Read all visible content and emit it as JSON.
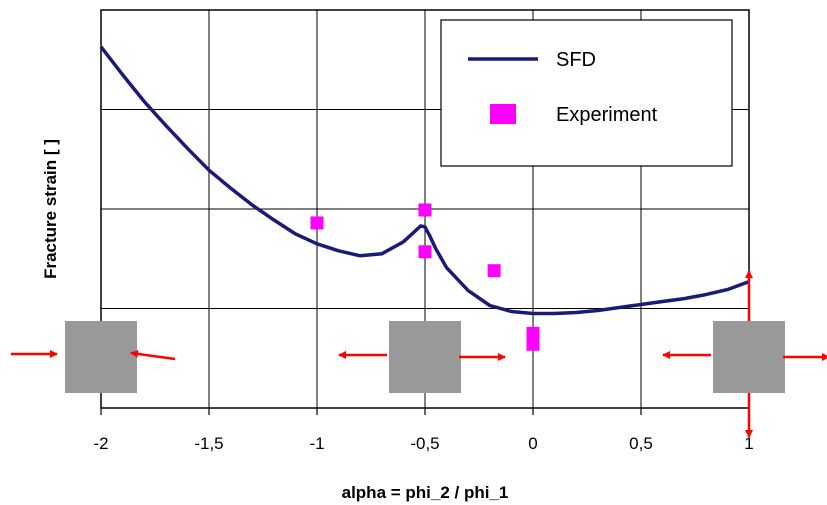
{
  "chart_data": {
    "type": "line",
    "xlabel": "alpha = phi_2 / phi_1",
    "ylabel": "Fracture strain [ ]",
    "xlim": [
      -2,
      1
    ],
    "ylim": [
      0,
      4
    ],
    "x_ticks": [
      "-2",
      "-1,5",
      "-1",
      "-0,5",
      "0",
      "0,5",
      "1"
    ],
    "grid": true,
    "legend_position": "top-right",
    "colors": {
      "sfd": "#1a1a7a",
      "experiment": "#ff00ff",
      "arrows": "#ff0000",
      "squares": "#999999"
    },
    "series": [
      {
        "name": "SFD",
        "kind": "line",
        "x": [
          -2.0,
          -1.9,
          -1.8,
          -1.7,
          -1.6,
          -1.5,
          -1.4,
          -1.3,
          -1.2,
          -1.1,
          -1.0,
          -0.9,
          -0.8,
          -0.7,
          -0.6,
          -0.55,
          -0.52,
          -0.5,
          -0.48,
          -0.45,
          -0.4,
          -0.3,
          -0.2,
          -0.1,
          0.0,
          0.1,
          0.2,
          0.3,
          0.4,
          0.5,
          0.6,
          0.7,
          0.8,
          0.9,
          1.0
        ],
        "y": [
          3.63,
          3.35,
          3.08,
          2.84,
          2.61,
          2.39,
          2.21,
          2.04,
          1.89,
          1.75,
          1.65,
          1.58,
          1.53,
          1.55,
          1.67,
          1.77,
          1.83,
          1.82,
          1.74,
          1.6,
          1.41,
          1.18,
          1.03,
          0.97,
          0.95,
          0.95,
          0.96,
          0.98,
          1.01,
          1.04,
          1.07,
          1.1,
          1.14,
          1.19,
          1.27
        ]
      },
      {
        "name": "Experiment",
        "kind": "marker",
        "x": [
          -1.0,
          -0.5,
          -0.5,
          -0.18,
          0.0,
          0.0
        ],
        "y": [
          1.86,
          1.99,
          1.57,
          1.38,
          0.75,
          0.64
        ]
      }
    ]
  }
}
